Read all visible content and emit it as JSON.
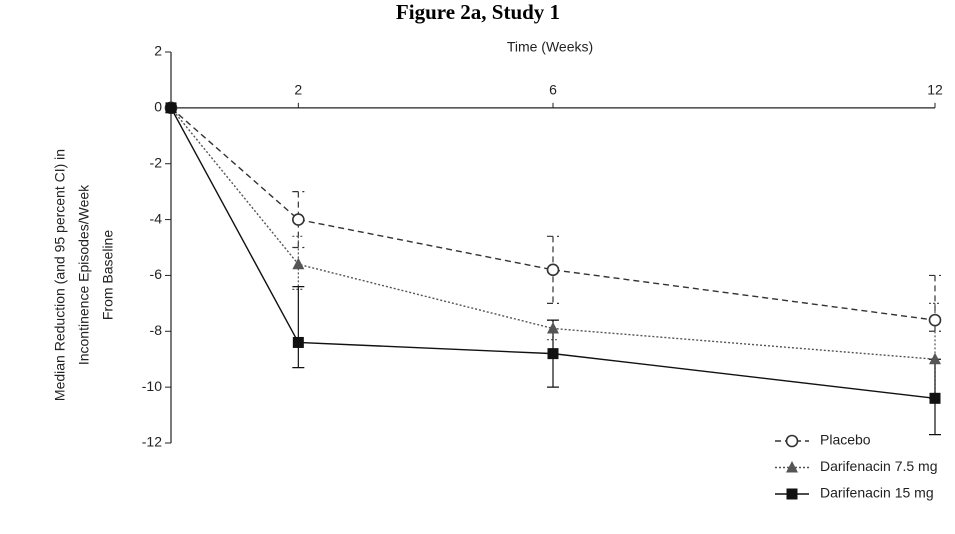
{
  "chart_data": {
    "type": "line",
    "title": "Figure 2a, Study 1",
    "xlabel": "Time (Weeks)",
    "ylabel": [
      "Median Reduction (and 95 percent CI) in",
      "Incontinence Episodes/Week",
      "From Baseline"
    ],
    "x": [
      0,
      2,
      6,
      12
    ],
    "xlim": [
      0,
      12
    ],
    "xticks": [
      2,
      6,
      12
    ],
    "ylim": [
      -12,
      2
    ],
    "yticks": [
      2,
      0,
      -2,
      -4,
      -6,
      -8,
      -10,
      -12
    ],
    "legend": "lower right",
    "series": [
      {
        "name": "Placebo",
        "color": "#333333",
        "dash": "6,4",
        "marker": "open-circle",
        "values": [
          0,
          -4.0,
          -5.8,
          -7.6
        ],
        "ci_upper": [
          null,
          -3.0,
          -4.6,
          -6.0
        ],
        "ci_lower": [
          null,
          -5.0,
          -7.0,
          -8.0
        ]
      },
      {
        "name": "Darifenacin 7.5 mg",
        "color": "#555555",
        "dash": "2,2",
        "marker": "triangle",
        "values": [
          0,
          -5.6,
          -7.9,
          -9.0
        ],
        "ci_upper": [
          null,
          -4.6,
          -7.6,
          -7.0
        ],
        "ci_lower": [
          null,
          -6.5,
          -8.3,
          -10.4
        ]
      },
      {
        "name": "Darifenacin 15 mg",
        "color": "#111111",
        "dash": "none",
        "marker": "square",
        "values": [
          0,
          -8.4,
          -8.8,
          -10.4
        ],
        "ci_upper": [
          null,
          -6.4,
          -7.6,
          -9.0
        ],
        "ci_lower": [
          null,
          -9.3,
          -10.0,
          -11.7
        ]
      }
    ]
  }
}
